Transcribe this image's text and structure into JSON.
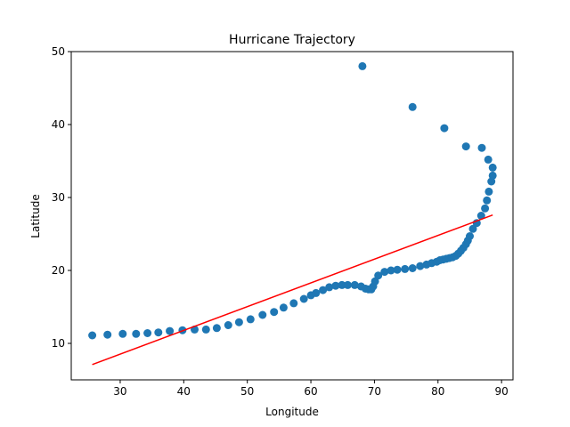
{
  "chart_data": {
    "type": "scatter",
    "title": "Hurricane Trajectory",
    "xlabel": "Longitude",
    "ylabel": "Latitude",
    "xlim": [
      22.3,
      91.8
    ],
    "ylim": [
      5.0,
      50.0
    ],
    "xticks": [
      30,
      40,
      50,
      60,
      70,
      80,
      90
    ],
    "yticks": [
      10,
      20,
      30,
      40,
      50
    ],
    "grid": false,
    "series": [
      {
        "type": "scatter",
        "color": "#1f77b4",
        "x": [
          25.6,
          28.0,
          30.4,
          32.5,
          34.3,
          36.0,
          37.8,
          39.8,
          41.7,
          43.5,
          45.2,
          47.0,
          48.7,
          50.5,
          52.4,
          54.2,
          55.7,
          57.3,
          58.9,
          60.0,
          60.8,
          61.9,
          62.9,
          63.9,
          64.9,
          65.8,
          66.9,
          67.9,
          68.6,
          69.1,
          69.5,
          69.8,
          70.1,
          70.6,
          71.6,
          72.6,
          73.6,
          74.8,
          76.0,
          77.2,
          78.2,
          79.0,
          79.8,
          80.3,
          80.8,
          81.3,
          81.8,
          82.3,
          82.8,
          83.2,
          83.6,
          84.0,
          84.4,
          84.7,
          85.0,
          85.5,
          86.1,
          86.8,
          87.4,
          87.7,
          88.0,
          88.4,
          88.6,
          88.6,
          87.9,
          86.9,
          84.4,
          81.0,
          76.0,
          68.1
        ],
        "y": [
          11.1,
          11.2,
          11.3,
          11.3,
          11.4,
          11.5,
          11.7,
          11.8,
          11.9,
          11.9,
          12.1,
          12.5,
          12.9,
          13.3,
          13.9,
          14.3,
          14.9,
          15.5,
          16.1,
          16.6,
          16.9,
          17.3,
          17.7,
          17.9,
          18.0,
          18.0,
          18.0,
          17.8,
          17.5,
          17.4,
          17.4,
          17.8,
          18.5,
          19.3,
          19.8,
          20.0,
          20.1,
          20.2,
          20.3,
          20.6,
          20.8,
          21.0,
          21.2,
          21.4,
          21.5,
          21.6,
          21.7,
          21.8,
          22.0,
          22.3,
          22.7,
          23.1,
          23.6,
          24.1,
          24.7,
          25.7,
          26.5,
          27.5,
          28.5,
          29.6,
          30.8,
          32.2,
          33.0,
          34.1,
          35.2,
          36.8,
          37.0,
          39.5,
          42.4,
          48.0
        ]
      },
      {
        "type": "line",
        "color": "#ff0000",
        "x": [
          25.6,
          88.6
        ],
        "y": [
          7.1,
          27.6
        ]
      }
    ]
  }
}
